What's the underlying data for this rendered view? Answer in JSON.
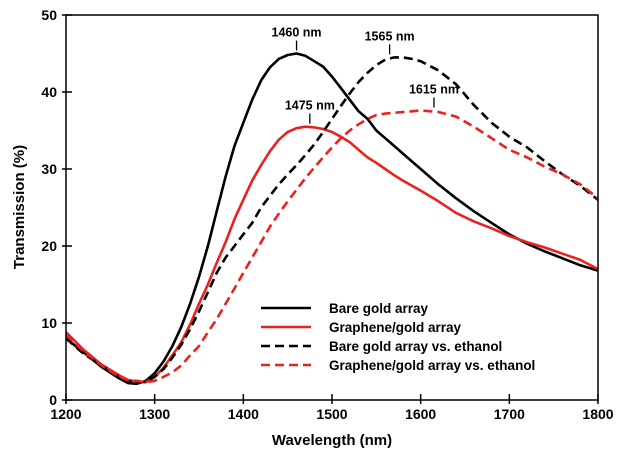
{
  "chart_data": {
    "type": "line",
    "xlabel": "Wavelength (nm)",
    "ylabel": "Transmission (%)",
    "xlim": [
      1200,
      1800
    ],
    "ylim": [
      0,
      50
    ],
    "xticks": [
      1200,
      1300,
      1400,
      1500,
      1600,
      1700,
      1800
    ],
    "yticks": [
      0,
      10,
      20,
      30,
      40,
      50
    ],
    "grid": false,
    "legend_position": "bottom-right",
    "series": [
      {
        "name": "Bare gold array",
        "color": "#000000",
        "dash": "solid",
        "x": [
          1200,
          1220,
          1240,
          1260,
          1270,
          1280,
          1290,
          1300,
          1310,
          1320,
          1330,
          1340,
          1350,
          1360,
          1370,
          1380,
          1390,
          1400,
          1410,
          1420,
          1430,
          1440,
          1450,
          1460,
          1470,
          1480,
          1490,
          1500,
          1510,
          1520,
          1530,
          1540,
          1550,
          1560,
          1570,
          1580,
          1600,
          1620,
          1640,
          1660,
          1680,
          1700,
          1720,
          1740,
          1760,
          1780,
          1800
        ],
        "y": [
          8.0,
          6.2,
          4.3,
          2.8,
          2.2,
          2.1,
          2.5,
          3.5,
          5.0,
          7.0,
          9.5,
          12.5,
          16.0,
          20.0,
          24.5,
          29.0,
          33.0,
          36.0,
          39.0,
          41.5,
          43.2,
          44.3,
          44.8,
          45.0,
          44.7,
          44.0,
          43.3,
          42.0,
          40.5,
          39.0,
          37.5,
          36.5,
          35.0,
          34.0,
          33.0,
          32.0,
          30.0,
          28.0,
          26.2,
          24.5,
          23.0,
          21.5,
          20.3,
          19.3,
          18.4,
          17.5,
          16.8
        ]
      },
      {
        "name": "Graphene/gold array",
        "color": "#e8231e",
        "dash": "solid",
        "x": [
          1200,
          1220,
          1240,
          1260,
          1270,
          1280,
          1290,
          1300,
          1310,
          1320,
          1330,
          1340,
          1350,
          1360,
          1370,
          1380,
          1390,
          1400,
          1410,
          1420,
          1430,
          1440,
          1450,
          1460,
          1470,
          1480,
          1490,
          1500,
          1510,
          1520,
          1530,
          1540,
          1550,
          1560,
          1570,
          1580,
          1600,
          1620,
          1640,
          1660,
          1680,
          1700,
          1720,
          1740,
          1760,
          1780,
          1800
        ],
        "y": [
          8.8,
          6.5,
          4.6,
          3.2,
          2.6,
          2.4,
          2.3,
          3.0,
          4.2,
          5.8,
          7.5,
          9.8,
          12.5,
          15.0,
          17.8,
          20.5,
          23.5,
          26.0,
          28.5,
          30.5,
          32.3,
          33.8,
          34.8,
          35.3,
          35.5,
          35.4,
          35.2,
          34.8,
          34.2,
          33.5,
          32.5,
          31.5,
          30.8,
          30.0,
          29.2,
          28.5,
          27.2,
          25.8,
          24.3,
          23.2,
          22.3,
          21.3,
          20.5,
          19.8,
          19.0,
          18.2,
          17.0
        ]
      },
      {
        "name": "Bare gold array vs. ethanol",
        "color": "#000000",
        "dash": "dashed",
        "x": [
          1200,
          1220,
          1240,
          1260,
          1270,
          1280,
          1290,
          1300,
          1310,
          1320,
          1330,
          1340,
          1350,
          1360,
          1370,
          1380,
          1390,
          1400,
          1410,
          1420,
          1430,
          1440,
          1450,
          1460,
          1470,
          1480,
          1490,
          1500,
          1510,
          1520,
          1530,
          1540,
          1550,
          1560,
          1570,
          1580,
          1590,
          1600,
          1620,
          1640,
          1660,
          1680,
          1700,
          1720,
          1740,
          1760,
          1780,
          1800
        ],
        "y": [
          8.0,
          6.0,
          4.5,
          3.0,
          2.5,
          2.2,
          2.4,
          3.0,
          4.0,
          5.5,
          7.2,
          9.2,
          11.5,
          14.0,
          16.5,
          18.5,
          20.0,
          21.5,
          23.0,
          25.0,
          26.5,
          28.0,
          29.3,
          30.5,
          31.8,
          33.2,
          34.8,
          36.5,
          38.2,
          39.8,
          41.3,
          42.5,
          43.5,
          44.2,
          44.5,
          44.5,
          44.3,
          44.0,
          42.8,
          41.0,
          38.3,
          36.0,
          34.2,
          32.8,
          31.0,
          29.3,
          27.8,
          26.0
        ]
      },
      {
        "name": "Graphene/gold array vs. ethanol",
        "color": "#e8231e",
        "dash": "dashed",
        "x": [
          1200,
          1220,
          1240,
          1260,
          1270,
          1280,
          1290,
          1300,
          1310,
          1320,
          1330,
          1340,
          1350,
          1360,
          1370,
          1380,
          1390,
          1400,
          1410,
          1420,
          1430,
          1440,
          1450,
          1460,
          1470,
          1480,
          1490,
          1500,
          1510,
          1520,
          1530,
          1540,
          1550,
          1560,
          1570,
          1580,
          1590,
          1600,
          1620,
          1640,
          1660,
          1680,
          1700,
          1720,
          1740,
          1760,
          1780,
          1800
        ],
        "y": [
          8.5,
          6.3,
          4.5,
          3.0,
          2.6,
          2.5,
          2.3,
          2.5,
          3.0,
          3.6,
          4.5,
          5.8,
          7.0,
          8.8,
          10.5,
          12.5,
          14.5,
          16.5,
          18.5,
          20.5,
          22.5,
          24.2,
          25.8,
          27.3,
          28.8,
          30.2,
          31.5,
          32.8,
          34.0,
          35.0,
          35.8,
          36.5,
          37.0,
          37.2,
          37.3,
          37.4,
          37.5,
          37.6,
          37.4,
          36.8,
          35.5,
          34.0,
          32.5,
          31.5,
          30.3,
          29.3,
          28.0,
          26.2
        ]
      }
    ],
    "annotations": [
      {
        "text": "1460 nm",
        "x": 1460,
        "y": 45.0
      },
      {
        "text": "1565 nm",
        "x": 1565,
        "y": 44.5
      },
      {
        "text": "1475 nm",
        "x": 1475,
        "y": 35.5
      },
      {
        "text": "1615 nm",
        "x": 1615,
        "y": 37.6
      }
    ]
  }
}
